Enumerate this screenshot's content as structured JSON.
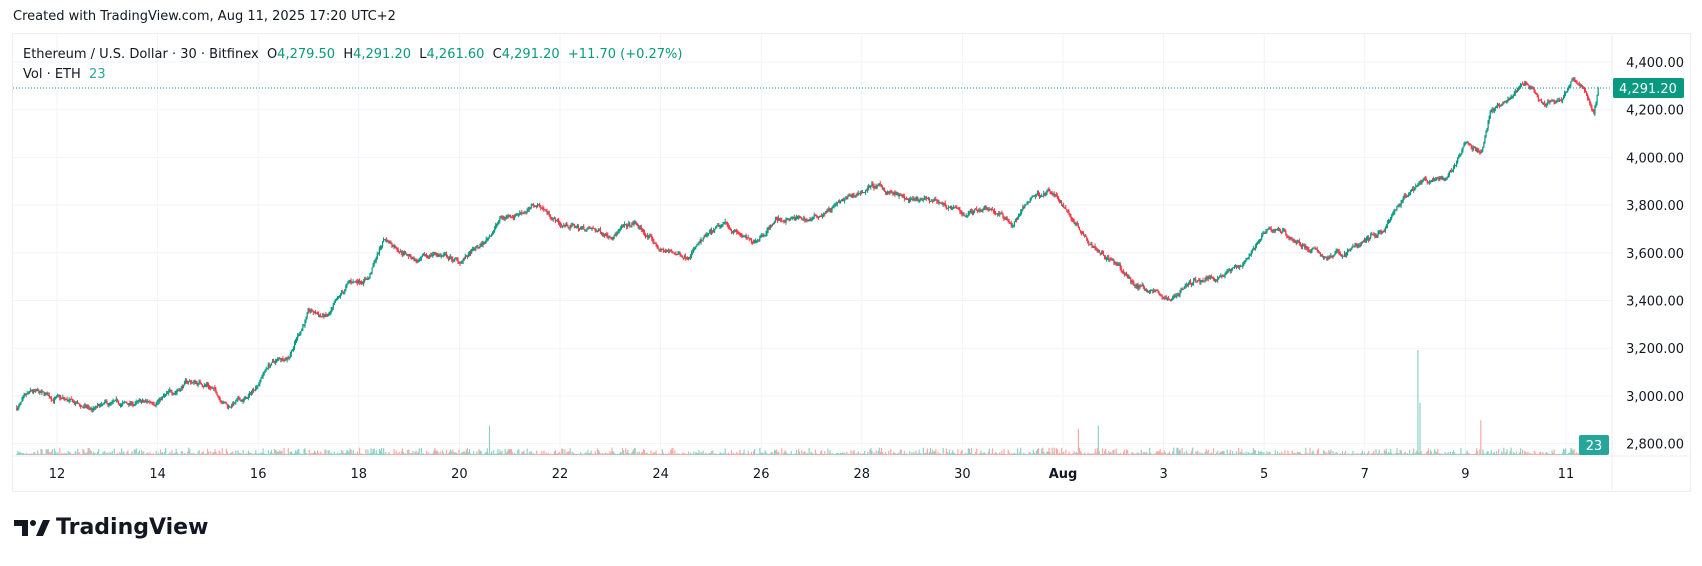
{
  "header": {
    "created_text": "Created with TradingView.com, Aug 11, 2025 17:20 UTC+2"
  },
  "legend": {
    "symbol": "Ethereum / U.S. Dollar · 30 · Bitfinex",
    "o_label": "O",
    "o": "4,279.50",
    "h_label": "H",
    "h": "4,291.20",
    "l_label": "L",
    "l": "4,261.60",
    "c_label": "C",
    "c": "4,291.20",
    "change": "+11.70 (+0.27%)",
    "vol_label": "Vol · ETH",
    "vol": "23"
  },
  "price_tag": "4,291.20",
  "volume_tag": "23",
  "logo": {
    "text": "TradingView"
  },
  "colors": {
    "up": "#089981",
    "down": "#f23645",
    "vol_up": "#8fd1c4",
    "vol_down": "#f7a9a7",
    "grid": "#f0f3fa"
  },
  "chart_data": {
    "type": "candlestick",
    "interval_minutes": 30,
    "x_unit": "day (Jul 12 = 12, Aug 1 = 32)",
    "y_ticks": [
      "4,400.00",
      "4,200.00",
      "4,000.00",
      "3,800.00",
      "3,600.00",
      "3,400.00",
      "3,200.00",
      "3,000.00",
      "2,800.00"
    ],
    "y_tick_values": [
      4400,
      4200,
      4000,
      3800,
      3600,
      3400,
      3200,
      3000,
      2800
    ],
    "x_ticks": [
      {
        "day": 12,
        "label": "12"
      },
      {
        "day": 14,
        "label": "14"
      },
      {
        "day": 16,
        "label": "16"
      },
      {
        "day": 18,
        "label": "18"
      },
      {
        "day": 20,
        "label": "20"
      },
      {
        "day": 22,
        "label": "22"
      },
      {
        "day": 24,
        "label": "24"
      },
      {
        "day": 26,
        "label": "26"
      },
      {
        "day": 28,
        "label": "28"
      },
      {
        "day": 30,
        "label": "30"
      },
      {
        "day": 32,
        "label": "Aug"
      },
      {
        "day": 34,
        "label": "3"
      },
      {
        "day": 36,
        "label": "5"
      },
      {
        "day": 38,
        "label": "7"
      },
      {
        "day": 40,
        "label": "9"
      },
      {
        "day": 42,
        "label": "11"
      }
    ],
    "last_price": 4291.2,
    "close_path": [
      [
        11.2,
        2950
      ],
      [
        11.5,
        3010
      ],
      [
        12,
        2990
      ],
      [
        12.7,
        2940
      ],
      [
        13,
        2960
      ],
      [
        13.8,
        2970
      ],
      [
        14.2,
        3000
      ],
      [
        14.6,
        3060
      ],
      [
        15,
        3050
      ],
      [
        15.4,
        2960
      ],
      [
        15.8,
        2990
      ],
      [
        16.2,
        3130
      ],
      [
        16.6,
        3170
      ],
      [
        17,
        3350
      ],
      [
        17.4,
        3330
      ],
      [
        17.8,
        3470
      ],
      [
        18.2,
        3500
      ],
      [
        18.5,
        3660
      ],
      [
        18.8,
        3620
      ],
      [
        19.2,
        3560
      ],
      [
        19.5,
        3600
      ],
      [
        20,
        3560
      ],
      [
        20.5,
        3640
      ],
      [
        20.8,
        3740
      ],
      [
        21.3,
        3780
      ],
      [
        21.6,
        3800
      ],
      [
        22,
        3720
      ],
      [
        22.5,
        3700
      ],
      [
        23,
        3680
      ],
      [
        23.5,
        3720
      ],
      [
        24,
        3610
      ],
      [
        24.5,
        3590
      ],
      [
        24.9,
        3660
      ],
      [
        25.3,
        3720
      ],
      [
        25.8,
        3640
      ],
      [
        26.3,
        3740
      ],
      [
        27,
        3740
      ],
      [
        27.5,
        3800
      ],
      [
        28.2,
        3880
      ],
      [
        28.5,
        3860
      ],
      [
        29,
        3810
      ],
      [
        29.5,
        3820
      ],
      [
        30,
        3760
      ],
      [
        30.5,
        3800
      ],
      [
        31,
        3720
      ],
      [
        31.4,
        3840
      ],
      [
        31.7,
        3860
      ],
      [
        32,
        3800
      ],
      [
        32.5,
        3660
      ],
      [
        33,
        3560
      ],
      [
        33.4,
        3470
      ],
      [
        33.8,
        3440
      ],
      [
        34.1,
        3400
      ],
      [
        34.5,
        3470
      ],
      [
        35,
        3500
      ],
      [
        35.5,
        3540
      ],
      [
        36,
        3680
      ],
      [
        36.3,
        3700
      ],
      [
        36.7,
        3640
      ],
      [
        37.2,
        3580
      ],
      [
        37.6,
        3600
      ],
      [
        38,
        3650
      ],
      [
        38.4,
        3700
      ],
      [
        38.8,
        3830
      ],
      [
        39.2,
        3900
      ],
      [
        39.6,
        3900
      ],
      [
        40,
        4050
      ],
      [
        40.3,
        4020
      ],
      [
        40.5,
        4200
      ],
      [
        40.9,
        4250
      ],
      [
        41.2,
        4310
      ],
      [
        41.5,
        4220
      ],
      [
        41.9,
        4230
      ],
      [
        42.1,
        4320
      ],
      [
        42.4,
        4280
      ],
      [
        42.55,
        4180
      ],
      [
        42.65,
        4291.2
      ]
    ],
    "volume_spikes": [
      [
        20.6,
        0.28
      ],
      [
        32.3,
        0.25
      ],
      [
        32.7,
        0.28
      ],
      [
        39.05,
        1.0
      ],
      [
        39.1,
        0.5
      ],
      [
        40.3,
        0.33
      ],
      [
        42.6,
        0.12
      ]
    ]
  }
}
